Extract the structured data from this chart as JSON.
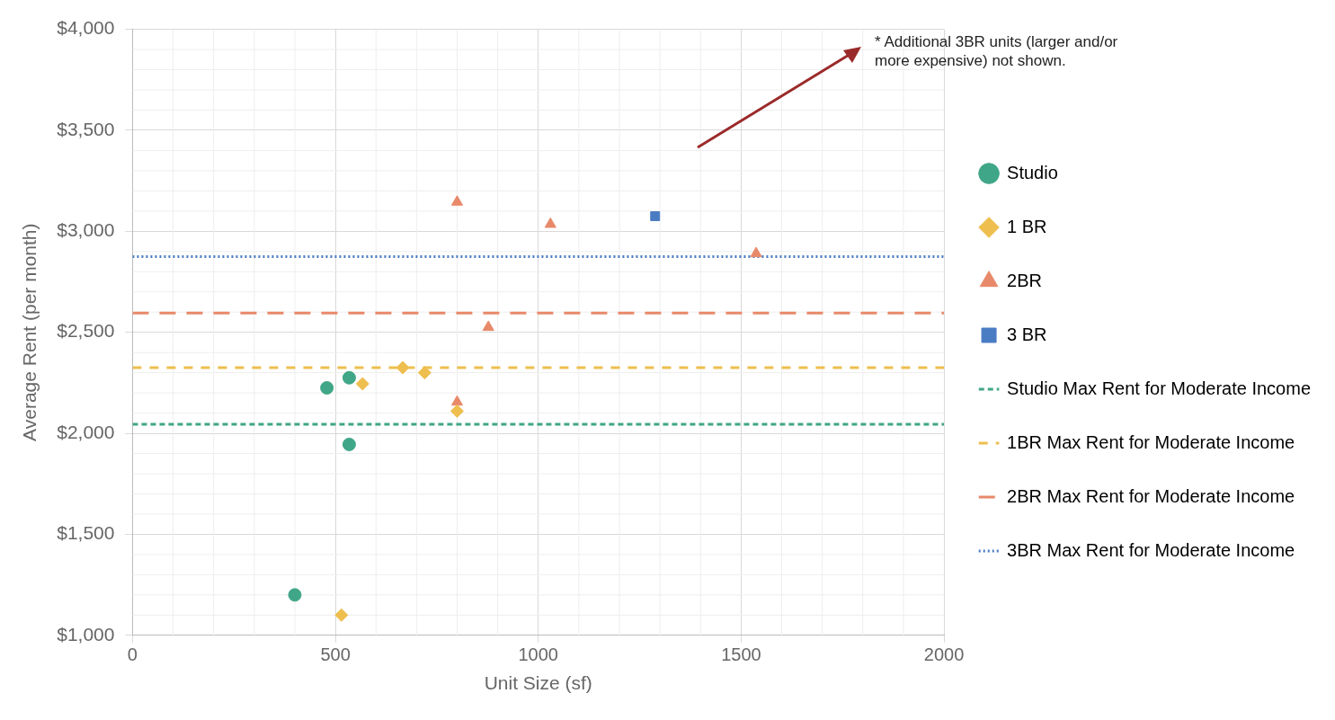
{
  "chart_data": {
    "type": "scatter",
    "xlabel": "Unit Size (sf)",
    "ylabel": "Average Rent (per month)",
    "annotations": [
      "* Additional 3BR units (larger and/or more expensive) not shown."
    ],
    "xlim": [
      0,
      2000
    ],
    "xticks": [
      0,
      500,
      1000,
      1500,
      2000
    ],
    "ylim": [
      1000,
      4000
    ],
    "yticks": [
      {
        "value": 1000,
        "label": "$1,000"
      },
      {
        "value": 1500,
        "label": "$1,500"
      },
      {
        "value": 2000,
        "label": "$2,000"
      },
      {
        "value": 2500,
        "label": "$2,500"
      },
      {
        "value": 3000,
        "label": "$3,000"
      },
      {
        "value": 3500,
        "label": "$3,500"
      },
      {
        "value": 4000,
        "label": "$4,000"
      }
    ],
    "grid": true,
    "legend": "right",
    "series": [
      {
        "name": "Studio",
        "color": "#3fa687",
        "marker": "circle",
        "x": [
          400,
          479,
          534,
          534
        ],
        "values": [
          1200,
          2225,
          2275,
          1945
        ]
      },
      {
        "name": "1 BR",
        "color": "#eebf4f",
        "marker": "diamond",
        "x": [
          515,
          567,
          666,
          720,
          800
        ],
        "values": [
          1100,
          2245,
          2325,
          2300,
          2110
        ]
      },
      {
        "name": "2BR",
        "color": "#e8896a",
        "marker": "triangle",
        "x": [
          800,
          1030,
          877,
          800,
          1537
        ],
        "values": [
          3145,
          3035,
          2525,
          2155,
          2890
        ]
      },
      {
        "name": "3 BR",
        "color": "#4a7cc3",
        "marker": "square",
        "x": [
          1288
        ],
        "values": [
          3075
        ]
      },
      {
        "name": "Studio Max Rent for Moderate Income",
        "type": "line",
        "color": "#3fa687",
        "line_style": "dashed",
        "marker": "none",
        "x": [
          0,
          2000
        ],
        "values": [
          2045,
          2045
        ]
      },
      {
        "name": "1BR Max Rent for Moderate Income",
        "type": "line",
        "color": "#eebf4f",
        "line_style": "dashed",
        "marker": "none",
        "x": [
          0,
          2000
        ],
        "values": [
          2325,
          2325
        ]
      },
      {
        "name": "2BR Max Rent for Moderate Income",
        "type": "line",
        "color": "#e8896a",
        "line_style": "dashed",
        "marker": "none",
        "x": [
          0,
          2000
        ],
        "values": [
          2595,
          2595
        ]
      },
      {
        "name": "3BR Max Rent for Moderate Income",
        "type": "line",
        "color": "#4a7cc3",
        "line_style": "dotted",
        "marker": "none",
        "x": [
          0,
          2000
        ],
        "values": [
          2875,
          2875
        ]
      }
    ]
  }
}
